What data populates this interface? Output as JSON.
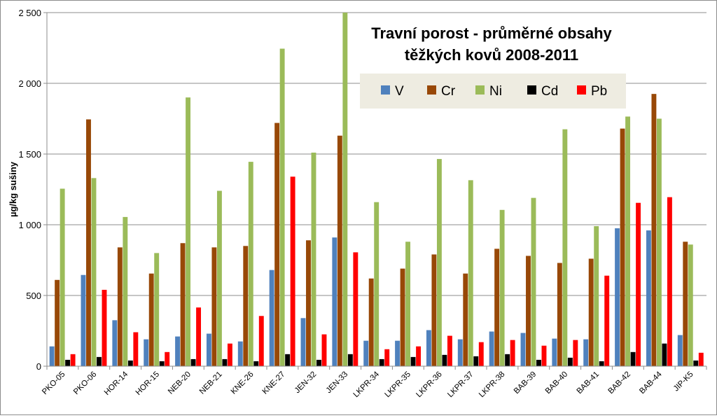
{
  "chart_data": {
    "type": "bar",
    "title": [
      "Travní porost - průměrné obsahy",
      "těžkých kovů  2008-2011"
    ],
    "xlabel": "",
    "ylabel": "µg/kg sušiny",
    "ylim": [
      0,
      2500
    ],
    "yticks": [
      0,
      500,
      1000,
      1500,
      2000,
      2500
    ],
    "ytick_labels": [
      "0",
      "500",
      "1 000",
      "1 500",
      "2 000",
      "2 500"
    ],
    "grid": true,
    "legend_position": "top-right",
    "categories": [
      "PKO-05",
      "PKO-06",
      "HOR-14",
      "HOR-15",
      "NEB-20",
      "NEB-21",
      "KNE-26",
      "KNE-27",
      "JEN-32",
      "JEN-33",
      "LKPR-34",
      "LKPR-35",
      "LKPR-36",
      "LKPR-37",
      "LKPR-38",
      "BAB-39",
      "BAB-40",
      "BAB-41",
      "BAB-42",
      "BAB-44",
      "JIP-K5"
    ],
    "series": [
      {
        "name": "V",
        "color": "#4f81bd",
        "values": [
          140,
          645,
          325,
          190,
          210,
          230,
          175,
          680,
          340,
          910,
          180,
          180,
          255,
          190,
          245,
          235,
          195,
          190,
          975,
          960,
          220
        ]
      },
      {
        "name": "Cr",
        "color": "#984807",
        "values": [
          610,
          1745,
          840,
          655,
          870,
          840,
          850,
          1720,
          890,
          1630,
          620,
          690,
          790,
          655,
          830,
          780,
          730,
          760,
          1680,
          1925,
          880
        ]
      },
      {
        "name": "Ni",
        "color": "#9bbb59",
        "values": [
          1255,
          1330,
          1055,
          800,
          1900,
          1240,
          1445,
          2245,
          1510,
          2500,
          1160,
          880,
          1465,
          1315,
          1105,
          1190,
          1675,
          990,
          1765,
          1750,
          860
        ]
      },
      {
        "name": "Cd",
        "color": "#000000",
        "values": [
          45,
          65,
          40,
          35,
          50,
          50,
          35,
          85,
          45,
          85,
          50,
          65,
          80,
          70,
          85,
          45,
          60,
          35,
          100,
          160,
          40
        ]
      },
      {
        "name": "Pb",
        "color": "#ff0000",
        "values": [
          85,
          540,
          240,
          100,
          415,
          160,
          355,
          1340,
          225,
          805,
          120,
          140,
          215,
          170,
          185,
          145,
          185,
          640,
          1155,
          1195,
          95
        ]
      }
    ]
  }
}
